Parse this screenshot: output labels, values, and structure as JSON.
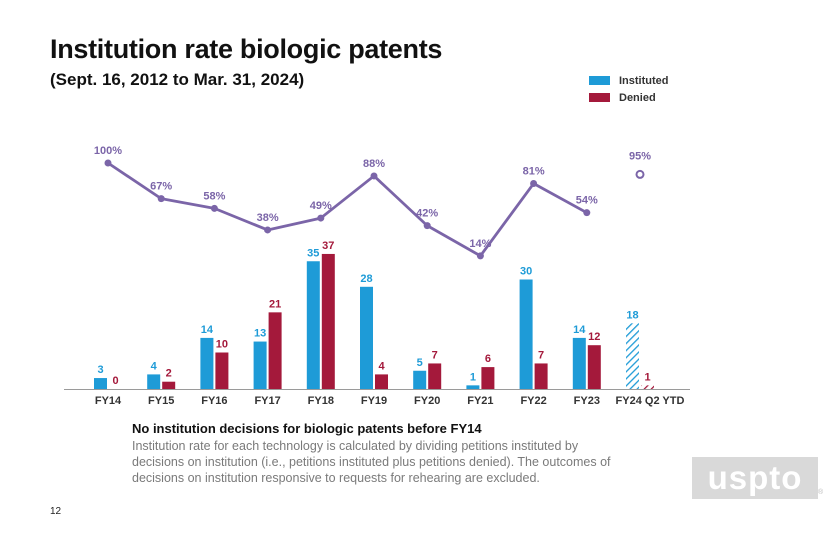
{
  "header": {
    "title": "Institution rate biologic patents",
    "subtitle": "(Sept. 16, 2012 to Mar. 31, 2024)"
  },
  "legend": {
    "instituted_label": "Instituted",
    "denied_label": "Denied"
  },
  "colors": {
    "instituted": "#1E9BD7",
    "denied": "#A4193B",
    "rate_line": "#7B65A8",
    "axis": "#9a9a9a"
  },
  "chart_data": {
    "type": "bar",
    "title": "Institution rate biologic patents",
    "categories": [
      "FY14",
      "FY15",
      "FY16",
      "FY17",
      "FY18",
      "FY19",
      "FY20",
      "FY21",
      "FY22",
      "FY23",
      "FY24 Q2 YTD"
    ],
    "series": [
      {
        "name": "Instituted",
        "values": [
          3,
          4,
          14,
          13,
          35,
          28,
          5,
          1,
          30,
          14,
          18
        ]
      },
      {
        "name": "Denied",
        "values": [
          0,
          2,
          10,
          21,
          37,
          4,
          7,
          6,
          7,
          12,
          1
        ]
      }
    ],
    "rate_series": {
      "name": "Institution rate",
      "values": [
        100,
        67,
        58,
        38,
        49,
        88,
        42,
        14,
        81,
        54,
        95
      ],
      "labels": [
        "100%",
        "67%",
        "58%",
        "38%",
        "49%",
        "88%",
        "42%",
        "14%",
        "81%",
        "54%",
        "95%"
      ],
      "connected_through": "FY23",
      "standalone_point": "FY24 Q2 YTD"
    },
    "partial_period_category": "FY24 Q2 YTD",
    "bar_ylim": [
      0,
      37
    ],
    "rate_ylim": [
      0,
      100
    ],
    "xlabel": "",
    "ylabel": ""
  },
  "note": {
    "heading": "No institution decisions for biologic patents before FY14",
    "body": "Institution rate for each technology is calculated by dividing petitions instituted by decisions on institution (i.e., petitions instituted plus petitions denied). The outcomes of decisions on institution responsive to requests for rehearing are excluded."
  },
  "footer": {
    "page_number": "12",
    "logo_text": "uspto",
    "logo_mark": "®"
  }
}
